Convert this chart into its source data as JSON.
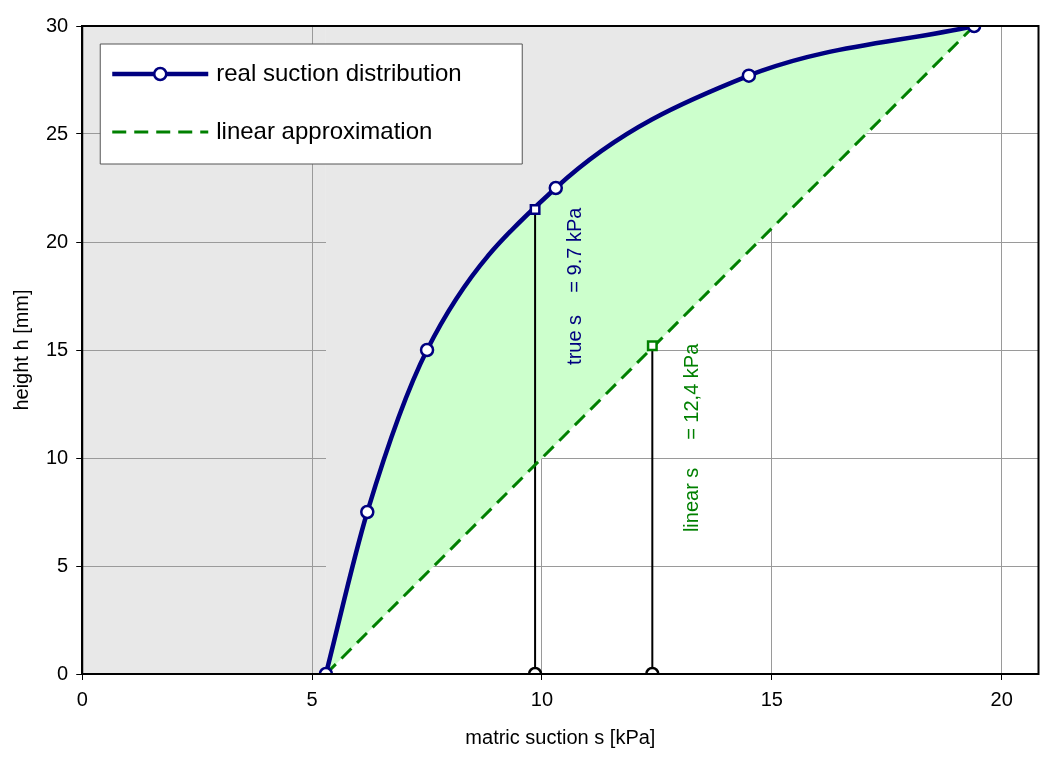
{
  "chart_data": {
    "type": "line",
    "xlabel": "matric suction s [kPa]",
    "ylabel": "height h [mm]",
    "xlim": [
      0,
      20.8
    ],
    "xticks": [
      0,
      5,
      10,
      15,
      20
    ],
    "ylim": [
      0,
      30
    ],
    "yticks": [
      0,
      5,
      10,
      15,
      20,
      25,
      30
    ],
    "grid": true,
    "legend": "top left",
    "series": [
      {
        "name": "real suction distribution",
        "color": "#000080",
        "marker": "circle",
        "line_style": "solid",
        "x": [
          5.3,
          6.2,
          7.5,
          10.3,
          14.5,
          19.4
        ],
        "values": [
          0,
          7.5,
          15,
          22.5,
          27.7,
          30
        ],
        "lower": [
          0,
          1.91,
          4.68,
          10.64,
          19.57,
          30
        ],
        "upper": [
          0,
          7.5,
          15,
          22.5,
          27.7,
          30
        ]
      },
      {
        "name": "linear approximation",
        "color": "#008000",
        "marker": "none",
        "line_style": "dashed",
        "x": [
          5.3,
          19.4
        ],
        "values": [
          0,
          30
        ]
      },
      {
        "color": "#000000",
        "marker": "none",
        "line_style": "solid",
        "x": [
          9.85,
          9.85
        ],
        "values": [
          0,
          21.5
        ]
      },
      {
        "color": "#000000",
        "marker": "none",
        "line_style": "solid",
        "x": [
          12.4,
          12.4
        ],
        "values": [
          0,
          15.2
        ]
      },
      {
        "type": "scatter",
        "color": "#000000",
        "marker": "circle",
        "x": [
          9.85,
          12.4
        ],
        "values": [
          0,
          0
        ]
      },
      {
        "type": "scatter",
        "color": "#000080",
        "marker": "square",
        "x": [
          9.85
        ],
        "values": [
          21.5
        ]
      },
      {
        "type": "scatter",
        "color": "#008000",
        "marker": "square",
        "x": [
          12.4
        ],
        "values": [
          15.2
        ]
      }
    ],
    "bands": [
      {
        "axis": "x",
        "from": 0,
        "to": 5.3,
        "color": "#e8e8e8"
      }
    ],
    "annotations": [
      "true s    = 9.7 kPa",
      "linear s     = 12,4 kPa"
    ]
  }
}
